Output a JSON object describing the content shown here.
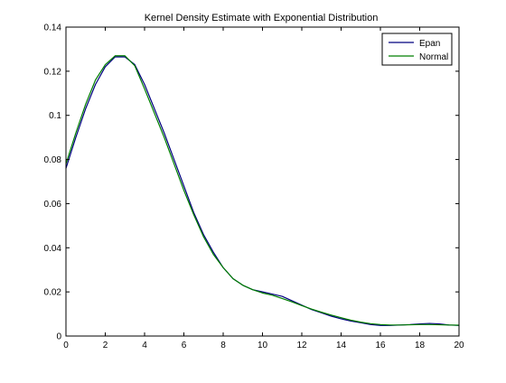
{
  "chart_data": {
    "type": "line",
    "title": "Kernel Density Estimate with Exponential Distribution",
    "xlabel": "",
    "ylabel": "",
    "xlim": [
      0,
      20
    ],
    "ylim": [
      0,
      0.14
    ],
    "xticks": [
      0,
      2,
      4,
      6,
      8,
      10,
      12,
      14,
      16,
      18,
      20
    ],
    "yticks": [
      0,
      0.02,
      0.04,
      0.06,
      0.08,
      0.1,
      0.12,
      0.14
    ],
    "xtick_labels": [
      "0",
      "2",
      "4",
      "6",
      "8",
      "10",
      "12",
      "14",
      "16",
      "18",
      "20"
    ],
    "ytick_labels": [
      "0",
      "0.02",
      "0.04",
      "0.06",
      "0.08",
      "0.1",
      "0.12",
      "0.14"
    ],
    "grid": false,
    "legend_position": "top-right",
    "series": [
      {
        "name": "Epan",
        "color": "#00007f",
        "x": [
          0,
          0.5,
          1,
          1.5,
          2,
          2.5,
          3,
          3.5,
          4,
          4.5,
          5,
          5.5,
          6,
          6.5,
          7,
          7.5,
          8,
          8.5,
          9,
          9.5,
          10,
          10.5,
          11,
          11.5,
          12,
          12.5,
          13,
          13.5,
          14,
          14.5,
          15,
          15.5,
          16,
          16.5,
          17,
          17.5,
          18,
          18.5,
          19,
          19.5,
          20
        ],
        "y": [
          0.076,
          0.09,
          0.103,
          0.114,
          0.122,
          0.1265,
          0.1265,
          0.123,
          0.114,
          0.103,
          0.092,
          0.08,
          0.068,
          0.056,
          0.046,
          0.038,
          0.031,
          0.026,
          0.023,
          0.021,
          0.02,
          0.019,
          0.018,
          0.016,
          0.014,
          0.012,
          0.0105,
          0.009,
          0.0078,
          0.0068,
          0.006,
          0.0052,
          0.0048,
          0.0048,
          0.005,
          0.0052,
          0.0055,
          0.0057,
          0.0055,
          0.005,
          0.0048
        ]
      },
      {
        "name": "Normal",
        "color": "#007f00",
        "x": [
          0,
          0.5,
          1,
          1.5,
          2,
          2.5,
          3,
          3.5,
          4,
          4.5,
          5,
          5.5,
          6,
          6.5,
          7,
          7.5,
          8,
          8.5,
          9,
          9.5,
          10,
          10.5,
          11,
          11.5,
          12,
          12.5,
          13,
          13.5,
          14,
          14.5,
          15,
          15.5,
          16,
          16.5,
          17,
          17.5,
          18,
          18.5,
          19,
          19.5,
          20
        ],
        "y": [
          0.078,
          0.092,
          0.105,
          0.116,
          0.123,
          0.127,
          0.127,
          0.1225,
          0.112,
          0.101,
          0.09,
          0.078,
          0.066,
          0.055,
          0.045,
          0.037,
          0.031,
          0.026,
          0.023,
          0.021,
          0.0195,
          0.0185,
          0.017,
          0.0155,
          0.0138,
          0.0122,
          0.0108,
          0.0095,
          0.0083,
          0.0072,
          0.0063,
          0.0056,
          0.0052,
          0.005,
          0.005,
          0.0051,
          0.0052,
          0.0052,
          0.0051,
          0.005,
          0.0049
        ]
      }
    ]
  }
}
